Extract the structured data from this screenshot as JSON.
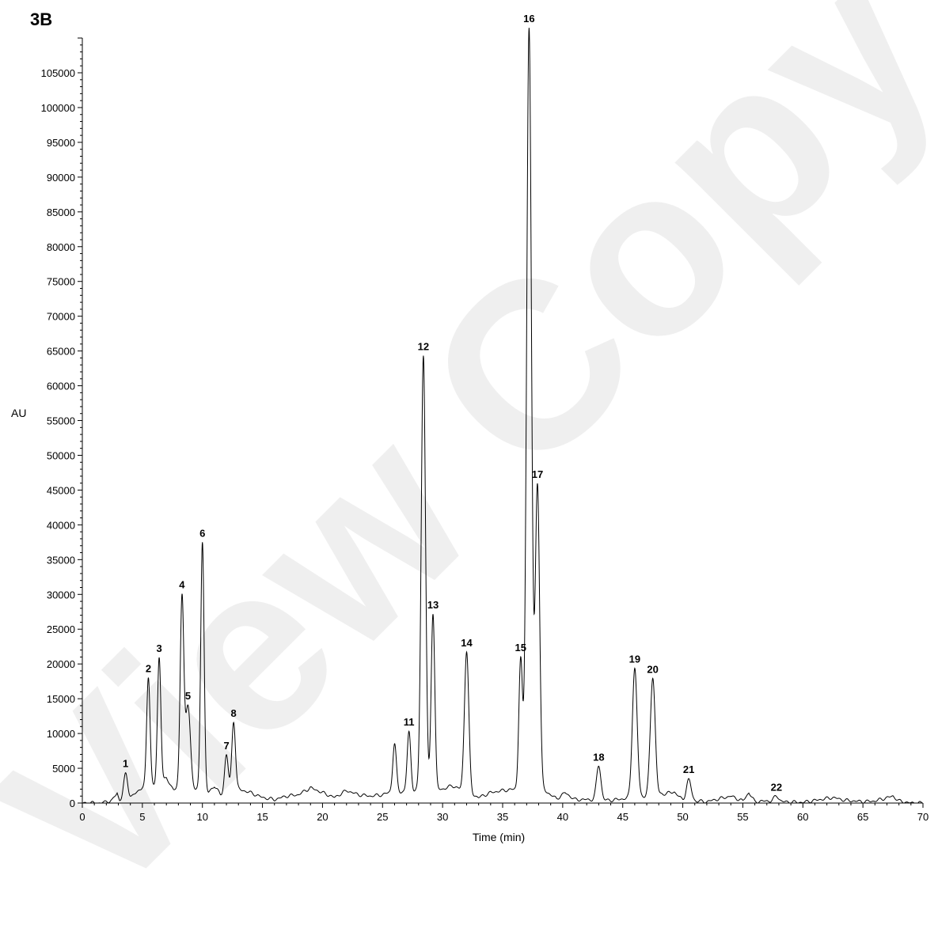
{
  "panel_label": "3B",
  "watermark": "View Copy",
  "chart_data": {
    "type": "line",
    "title": "",
    "xlabel": "Time (min)",
    "ylabel": "AU",
    "xlim": [
      0,
      70
    ],
    "ylim": [
      0,
      110000
    ],
    "x_ticks": [
      0,
      5,
      10,
      15,
      20,
      25,
      30,
      35,
      40,
      45,
      50,
      55,
      60,
      65,
      70
    ],
    "y_ticks": [
      0,
      5000,
      10000,
      15000,
      20000,
      25000,
      30000,
      35000,
      40000,
      45000,
      50000,
      55000,
      60000,
      65000,
      70000,
      75000,
      80000,
      85000,
      90000,
      95000,
      100000,
      105000
    ],
    "grid": false,
    "baseline": [
      [
        0,
        0
      ],
      [
        1.5,
        0
      ],
      [
        2.5,
        400
      ],
      [
        2.9,
        1500
      ],
      [
        3.1,
        300
      ],
      [
        3.5,
        0
      ],
      [
        3.7,
        300
      ],
      [
        4.5,
        1500
      ],
      [
        5,
        2300
      ],
      [
        6,
        2500
      ],
      [
        7,
        3500
      ],
      [
        7.6,
        2000
      ],
      [
        9.3,
        2000
      ],
      [
        10.5,
        1500
      ],
      [
        11,
        2500
      ],
      [
        11.5,
        1200
      ],
      [
        13,
        2000
      ],
      [
        14,
        1500
      ],
      [
        15,
        800
      ],
      [
        16,
        500
      ],
      [
        17,
        1000
      ],
      [
        18,
        1200
      ],
      [
        19,
        2200
      ],
      [
        20,
        1500
      ],
      [
        21,
        800
      ],
      [
        22,
        1800
      ],
      [
        23,
        1200
      ],
      [
        24,
        1000
      ],
      [
        25,
        1200
      ],
      [
        25.5,
        1500
      ],
      [
        30,
        2000
      ],
      [
        30.8,
        2500
      ],
      [
        31.5,
        2000
      ],
      [
        33,
        800
      ],
      [
        34,
        1500
      ],
      [
        35,
        1800
      ],
      [
        36,
        2000
      ],
      [
        38.5,
        1800
      ],
      [
        39.5,
        600
      ],
      [
        40.2,
        1500
      ],
      [
        41,
        500
      ],
      [
        42,
        500
      ],
      [
        44,
        400
      ],
      [
        45,
        600
      ],
      [
        48,
        1200
      ],
      [
        49.3,
        1600
      ],
      [
        50,
        400
      ],
      [
        51,
        300
      ],
      [
        52,
        200
      ],
      [
        54,
        1000
      ],
      [
        55,
        300
      ],
      [
        55.5,
        1500
      ],
      [
        56,
        200
      ],
      [
        57,
        300
      ],
      [
        58,
        200
      ],
      [
        60,
        100
      ],
      [
        62.5,
        800
      ],
      [
        63.5,
        400
      ],
      [
        65,
        200
      ],
      [
        66,
        300
      ],
      [
        67.5,
        1000
      ],
      [
        68,
        300
      ],
      [
        69,
        0
      ],
      [
        70,
        0
      ]
    ],
    "peaks": [
      {
        "label": "1",
        "time": 3.6,
        "height": 4000,
        "width": 0.18
      },
      {
        "label": "2",
        "time": 5.5,
        "height": 15800,
        "width": 0.14
      },
      {
        "label": "3",
        "time": 6.4,
        "height": 18000,
        "width": 0.14
      },
      {
        "label": "4",
        "time": 8.3,
        "height": 27800,
        "width": 0.15
      },
      {
        "label": "5",
        "time": 8.8,
        "height": 12000,
        "width": 0.2
      },
      {
        "label": "6",
        "time": 10.0,
        "height": 36000,
        "width": 0.14
      },
      {
        "label": "7",
        "time": 12.0,
        "height": 5500,
        "width": 0.15
      },
      {
        "label": "8",
        "time": 12.6,
        "height": 10000,
        "width": 0.15
      },
      {
        "label": "",
        "time": 26.0,
        "height": 7000,
        "width": 0.15
      },
      {
        "label": "11",
        "time": 27.2,
        "height": 8500,
        "width": 0.15
      },
      {
        "label": "12",
        "time": 28.4,
        "height": 62500,
        "width": 0.18
      },
      {
        "label": "13",
        "time": 29.2,
        "height": 25500,
        "width": 0.15
      },
      {
        "label": "14",
        "time": 32.0,
        "height": 20300,
        "width": 0.18
      },
      {
        "label": "15",
        "time": 36.5,
        "height": 18800,
        "width": 0.15
      },
      {
        "label": "16",
        "time": 37.2,
        "height": 109500,
        "width": 0.2
      },
      {
        "label": "17",
        "time": 37.9,
        "height": 44000,
        "width": 0.18
      },
      {
        "label": "18",
        "time": 43.0,
        "height": 5000,
        "width": 0.18
      },
      {
        "label": "19",
        "time": 46.0,
        "height": 18500,
        "width": 0.2
      },
      {
        "label": "20",
        "time": 47.5,
        "height": 17000,
        "width": 0.2
      },
      {
        "label": "21",
        "time": 50.5,
        "height": 3000,
        "width": 0.2
      },
      {
        "label": "22",
        "time": 57.8,
        "height": 800,
        "width": 0.2
      }
    ]
  }
}
